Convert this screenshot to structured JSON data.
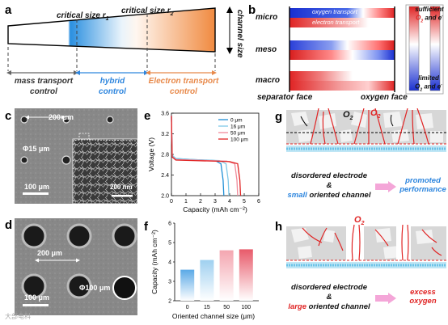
{
  "labels": {
    "a": "a",
    "b": "b",
    "c": "c",
    "d": "d",
    "e": "e",
    "f": "f",
    "g": "g",
    "h": "h"
  },
  "panel_a": {
    "critical_r1": "critical size r",
    "critical_r2": "critical size r",
    "sub1": "1",
    "sub2": "2",
    "channel_size": "channel size",
    "regions": [
      {
        "name": "mass transport",
        "control": "control",
        "color": "#333333"
      },
      {
        "name": "hybrid",
        "control": "control",
        "color": "#2e86de"
      },
      {
        "name": "Electron transport",
        "control": "control",
        "color": "#e8894a"
      }
    ]
  },
  "panel_b": {
    "rows": [
      "micro",
      "meso",
      "macro"
    ],
    "oxygen_transport": "oxygen transport",
    "electron_transport": "electron transport",
    "separator_face": "separator face",
    "oxygen_face": "oxygen face",
    "legend_top_1": "sufficient",
    "legend_top_2": "O",
    "legend_top_3": "and e",
    "legend_bot_1": "limited",
    "legend_bot_2": "O",
    "legend_bot_3": "and e"
  },
  "panel_c": {
    "top_scale": "200 μm",
    "diam": "Φ15 μm",
    "bottom_scale": "100 μm",
    "inset_scale": "200 nm"
  },
  "panel_d": {
    "top_scale": "200 μm",
    "diam": "Φ100 μm",
    "bottom_scale": "100 μm"
  },
  "panel_g": {
    "o2_left": "O",
    "o2_right": "O",
    "sub": "2",
    "line1": "disordered electrode",
    "amp": "&",
    "line3_a": "small",
    "line3_b": " oriented channel",
    "result1": "promoted",
    "result2": "performance"
  },
  "panel_h": {
    "o2": "O",
    "sub": "2",
    "line1": "disordered electrode",
    "amp": "&",
    "line3_a": "large",
    "line3_b": " oriented channel",
    "result1": "excess",
    "result2": "oxygen"
  },
  "watermark": "大部电科",
  "chart_data": [
    {
      "type": "line",
      "panel": "e",
      "xlabel": "Capacity (mAh cm⁻²)",
      "ylabel": "Voltage (V)",
      "xlim": [
        0,
        6
      ],
      "ylim": [
        2.0,
        3.6
      ],
      "xticks": [
        0,
        1,
        2,
        3,
        4,
        5,
        6
      ],
      "yticks": [
        2.0,
        2.4,
        2.8,
        3.2,
        3.6
      ],
      "legend_position": "top-right",
      "series": [
        {
          "name": "0 μm",
          "color": "#1f8fd6",
          "end_capacity": 3.6,
          "points": [
            [
              0,
              3.55
            ],
            [
              0.05,
              2.78
            ],
            [
              0.3,
              2.72
            ],
            [
              1.5,
              2.7
            ],
            [
              3.0,
              2.68
            ],
            [
              3.4,
              2.62
            ],
            [
              3.55,
              2.3
            ],
            [
              3.6,
              2.0
            ]
          ]
        },
        {
          "name": "16 μm",
          "color": "#7fc8e8",
          "end_capacity": 3.95,
          "points": [
            [
              0,
              3.55
            ],
            [
              0.05,
              2.78
            ],
            [
              0.3,
              2.72
            ],
            [
              1.5,
              2.7
            ],
            [
              3.3,
              2.68
            ],
            [
              3.75,
              2.62
            ],
            [
              3.9,
              2.3
            ],
            [
              3.95,
              2.0
            ]
          ]
        },
        {
          "name": "50 μm",
          "color": "#f08a9a",
          "end_capacity": 4.55,
          "points": [
            [
              0,
              3.55
            ],
            [
              0.05,
              2.76
            ],
            [
              0.3,
              2.7
            ],
            [
              1.5,
              2.69
            ],
            [
              3.8,
              2.67
            ],
            [
              4.35,
              2.62
            ],
            [
              4.5,
              2.3
            ],
            [
              4.55,
              2.0
            ]
          ]
        },
        {
          "name": "100 μm",
          "color": "#e02424",
          "end_capacity": 4.75,
          "points": [
            [
              0,
              3.55
            ],
            [
              0.05,
              2.75
            ],
            [
              0.3,
              2.69
            ],
            [
              1.5,
              2.68
            ],
            [
              4.0,
              2.66
            ],
            [
              4.55,
              2.62
            ],
            [
              4.7,
              2.3
            ],
            [
              4.75,
              2.0
            ]
          ]
        }
      ]
    },
    {
      "type": "bar",
      "panel": "f",
      "categories": [
        "0",
        "15",
        "50",
        "100"
      ],
      "values": [
        3.6,
        4.1,
        4.6,
        4.65
      ],
      "colors": [
        "#5aa9e6",
        "#9fd0f0",
        "#f4a6b0",
        "#e85a6a"
      ],
      "xlabel": "Oriented channel size (μm)",
      "ylabel": "Capacity (mAh cm⁻²)",
      "ylim": [
        2,
        6
      ],
      "yticks": [
        2,
        3,
        4,
        5,
        6
      ]
    }
  ]
}
